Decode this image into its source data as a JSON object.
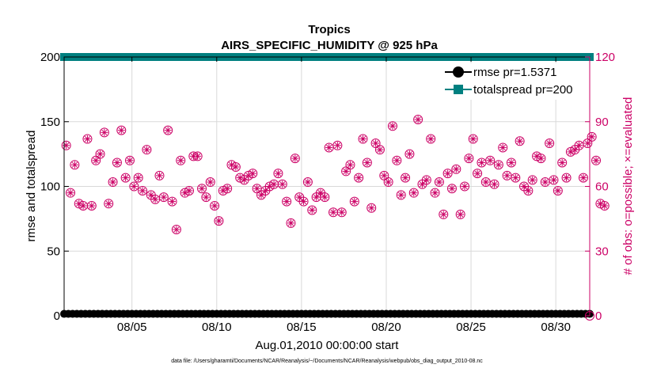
{
  "chart_data": {
    "type": "line",
    "title": "Tropics",
    "subtitle": "AIRS_SPECIFIC_HUMIDITY @ 925 hPa",
    "xlabel": "Aug.01,2010 00:00:00 start",
    "ylabel_left": "rmse and totalspread",
    "ylabel_right": "# of obs: o=possible; ×=evaluated",
    "footnote": "data file: /Users/gharamti/Documents/NCAR/Reanalysis/~/Documents/NCAR/Reanalysis/webpub/obs_diag_output_2010-08.nc",
    "xlim": [
      1,
      32
    ],
    "ylim_left": [
      0,
      200
    ],
    "ylim_right": [
      0,
      120
    ],
    "xticks": [
      {
        "value": 5,
        "label": "08/05"
      },
      {
        "value": 10,
        "label": "08/10"
      },
      {
        "value": 15,
        "label": "08/15"
      },
      {
        "value": 20,
        "label": "08/20"
      },
      {
        "value": 25,
        "label": "08/25"
      },
      {
        "value": 30,
        "label": "08/30"
      }
    ],
    "yticks_left": [
      {
        "value": 0,
        "label": "0"
      },
      {
        "value": 50,
        "label": "50"
      },
      {
        "value": 100,
        "label": "100"
      },
      {
        "value": 150,
        "label": "150"
      },
      {
        "value": 200,
        "label": "200"
      }
    ],
    "yticks_right": [
      {
        "value": 0,
        "label": "0"
      },
      {
        "value": 30,
        "label": "30"
      },
      {
        "value": 60,
        "label": "60"
      },
      {
        "value": 90,
        "label": "90"
      },
      {
        "value": 120,
        "label": "120"
      }
    ],
    "grid": true,
    "legend_position": "top-right",
    "colors": {
      "rmse": "#000000",
      "totalspread": "#008080",
      "obs": "#cc0066",
      "grid": "#d9d9d9"
    },
    "series": [
      {
        "name": "rmse",
        "legend": "rmse pr=1.5371",
        "axis": "left",
        "constant": 1.5,
        "step": 0.25
      },
      {
        "name": "totalspread",
        "legend": "totalspread pr=200",
        "axis": "left",
        "constant": 200,
        "step": 0.25
      },
      {
        "name": "possible",
        "marker": "circle",
        "axis": "right",
        "x_start": 1.125,
        "x_step": 0.25,
        "values": [
          79,
          57,
          70,
          52,
          51,
          82,
          51,
          72,
          75,
          85,
          52,
          62,
          71,
          86,
          64,
          72,
          60,
          64,
          58,
          77,
          56,
          54,
          65,
          55,
          86,
          53,
          40,
          72,
          57,
          58,
          74,
          74,
          59,
          55,
          62,
          51,
          44,
          58,
          59,
          70,
          69,
          64,
          63,
          65,
          66,
          59,
          56,
          58,
          60,
          61,
          66,
          61,
          53,
          43,
          73,
          55,
          53,
          62,
          49,
          55,
          57,
          55,
          78,
          48,
          79,
          48,
          67,
          70,
          53,
          64,
          82,
          71,
          50,
          80,
          77,
          65,
          62,
          88,
          72,
          56,
          64,
          75,
          57,
          91,
          61,
          63,
          82,
          57,
          62,
          47,
          66,
          59,
          68,
          47,
          60,
          73,
          82,
          66,
          71,
          62,
          72,
          61,
          70,
          78,
          65,
          71,
          64,
          81,
          60,
          58,
          63,
          74,
          73,
          62,
          80,
          63,
          58,
          71,
          64,
          76,
          77,
          79,
          64,
          80,
          83,
          72,
          52,
          51
        ]
      },
      {
        "name": "evaluated",
        "marker": "asterisk",
        "axis": "right",
        "x_start": 1.125,
        "x_step": 0.25,
        "values": [
          79,
          57,
          70,
          52,
          51,
          82,
          51,
          72,
          75,
          85,
          52,
          62,
          71,
          86,
          64,
          72,
          60,
          64,
          58,
          77,
          56,
          54,
          65,
          55,
          86,
          53,
          40,
          72,
          57,
          58,
          74,
          74,
          59,
          55,
          62,
          51,
          44,
          58,
          59,
          70,
          69,
          64,
          63,
          65,
          66,
          59,
          56,
          58,
          60,
          61,
          66,
          61,
          53,
          43,
          73,
          55,
          53,
          62,
          49,
          55,
          57,
          55,
          78,
          48,
          79,
          48,
          67,
          70,
          53,
          64,
          82,
          71,
          50,
          80,
          77,
          65,
          62,
          88,
          72,
          56,
          64,
          75,
          57,
          91,
          61,
          63,
          82,
          57,
          62,
          47,
          66,
          59,
          68,
          47,
          60,
          73,
          82,
          66,
          71,
          62,
          72,
          61,
          70,
          78,
          65,
          71,
          64,
          81,
          60,
          58,
          63,
          74,
          73,
          62,
          80,
          63,
          58,
          71,
          64,
          76,
          77,
          79,
          64,
          80,
          83,
          72,
          52,
          51
        ]
      }
    ]
  }
}
